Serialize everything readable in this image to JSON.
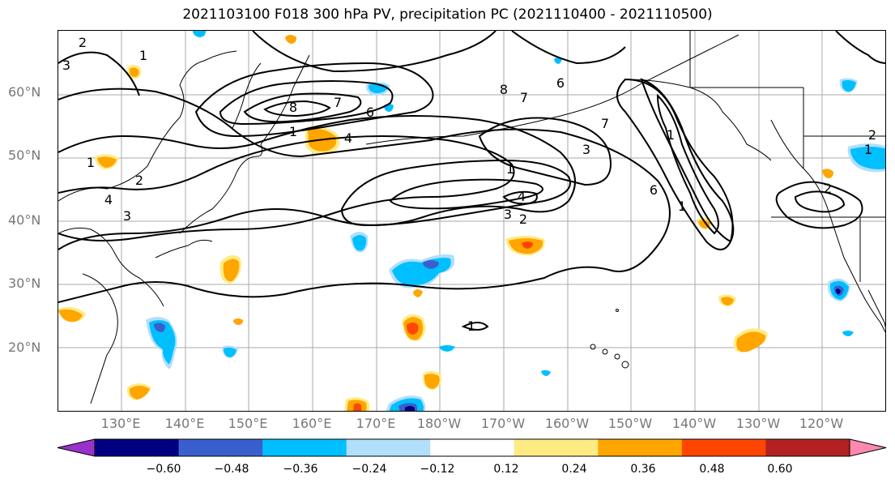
{
  "title": "2021103100 F018 300 hPa PV, precipitation PC (2021110400 - 2021110500)",
  "lat_labels": [
    "60°N",
    "50°N",
    "40°N",
    "30°N",
    "20°N"
  ],
  "lon_labels": [
    "130°E",
    "140°E",
    "150°E",
    "160°E",
    "170°E",
    "180°W",
    "170°W",
    "160°W",
    "150°W",
    "140°W",
    "130°W",
    "120°W"
  ],
  "contour_labels": [
    "2",
    "3",
    "1",
    "8",
    "7",
    "6",
    "1",
    "4",
    "1",
    "2",
    "4",
    "3",
    "1",
    "3",
    "2",
    "4",
    "8",
    "7",
    "6",
    "7",
    "3",
    "1",
    "6",
    "1",
    "1",
    "2",
    "1",
    "2"
  ],
  "colorbar": {
    "colors": [
      "#9932cc",
      "#000080",
      "#3a5fcd",
      "#00bfff",
      "#b2dffb",
      "#ffffff",
      "#ffeb84",
      "#ffa500",
      "#ff4500",
      "#b22222",
      "#ff88b0"
    ],
    "tick_labels": [
      "−0.60",
      "−0.48",
      "−0.36",
      "−0.24",
      "−0.12",
      "0.12",
      "0.24",
      "0.36",
      "0.48",
      "0.60"
    ]
  },
  "colors": {
    "grid": "#aaaaaa",
    "coast": "#000000",
    "contour": "#000000",
    "label_gray": "#777777"
  }
}
